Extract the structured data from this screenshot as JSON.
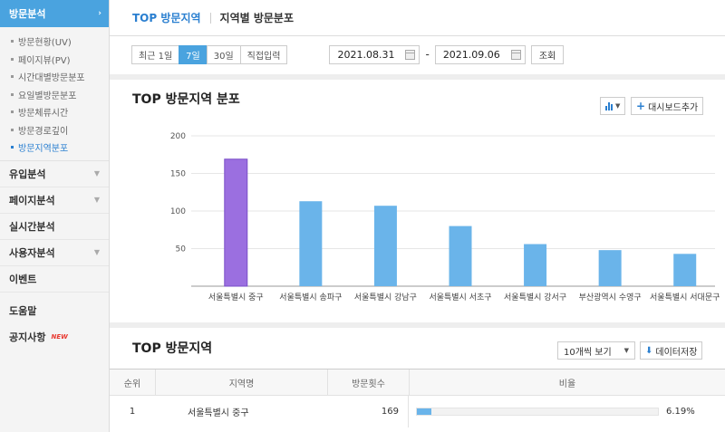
{
  "sidebar": {
    "active_section": "방문분석",
    "sub_items": [
      {
        "label": "방문현황(UV)",
        "active": false
      },
      {
        "label": "페이지뷰(PV)",
        "active": false
      },
      {
        "label": "시간대별방문분포",
        "active": false
      },
      {
        "label": "요일별방문분포",
        "active": false
      },
      {
        "label": "방문체류시간",
        "active": false
      },
      {
        "label": "방문경로깊이",
        "active": false
      },
      {
        "label": "방문지역분포",
        "active": true
      }
    ],
    "sections": [
      {
        "label": "유입분석",
        "has_caret": true
      },
      {
        "label": "페이지분석",
        "has_caret": true
      },
      {
        "label": "실시간분석",
        "has_caret": false
      },
      {
        "label": "사용자분석",
        "has_caret": true
      },
      {
        "label": "이벤트",
        "has_caret": false
      },
      {
        "label": "도움말",
        "has_caret": false
      },
      {
        "label": "공지사항",
        "has_caret": false,
        "badge": "NEW"
      }
    ]
  },
  "tabs": [
    {
      "label": "TOP 방문지역",
      "active": true
    },
    {
      "label": "지역별 방문분포",
      "active": false
    }
  ],
  "filter": {
    "ranges": [
      {
        "label": "최근 1일",
        "active": false
      },
      {
        "label": "7일",
        "active": true
      },
      {
        "label": "30일",
        "active": false
      },
      {
        "label": "직접입력",
        "active": false
      }
    ],
    "start_date": "2021.08.31",
    "end_date": "2021.09.06",
    "separator": "-",
    "query_label": "조회"
  },
  "chart_section": {
    "title": "TOP 방문지역 분포",
    "dashboard_button": "대시보드추가"
  },
  "chart_data": {
    "type": "bar",
    "categories": [
      "서울특별시 중구",
      "서울특별시 송파구",
      "서울특별시 강남구",
      "서울특별시 서초구",
      "서울특별시 강서구",
      "부산광역시 수영구",
      "서울특별시 서대문구"
    ],
    "values": [
      169,
      113,
      107,
      80,
      56,
      48,
      43
    ],
    "ylim": [
      0,
      200
    ],
    "yticks": [
      50,
      100,
      150,
      200
    ],
    "highlight_index": 0,
    "colors": {
      "highlight": "#9b6fe0",
      "default": "#6ab4ea"
    }
  },
  "table_section": {
    "title": "TOP 방문지역",
    "page_size_label": "10개씩 보기",
    "download_label": "데이터저장",
    "columns": [
      "순위",
      "지역명",
      "방문횟수",
      "비율"
    ],
    "rows": [
      {
        "rank": "1",
        "region": "서울특별시 중구",
        "count": "169",
        "ratio": 0.0619,
        "ratio_label": "6.19%"
      }
    ]
  }
}
